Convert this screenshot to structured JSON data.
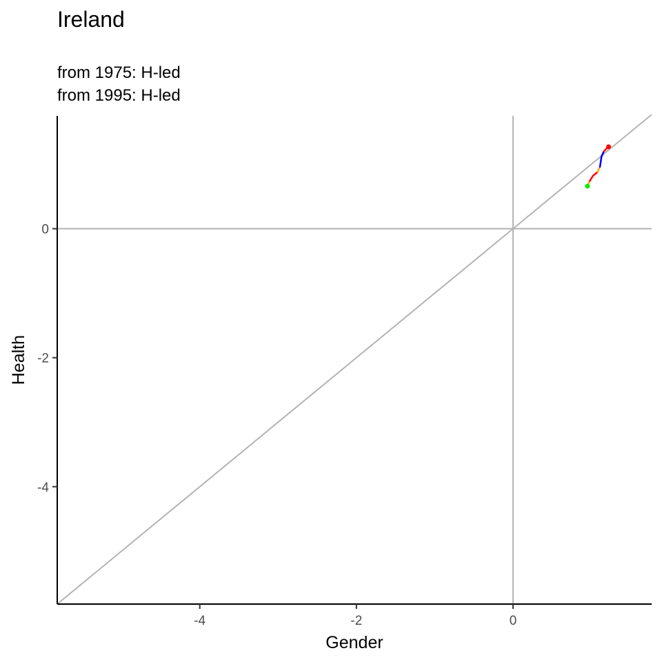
{
  "chart_data": {
    "type": "line",
    "title": "Ireland",
    "subtitle": [
      "from 1975:  H-led",
      "from 1995:  H-led"
    ],
    "xlabel": "Gender",
    "ylabel": "Health",
    "xlim": [
      -5.82,
      1.77
    ],
    "ylim": [
      -5.82,
      1.75
    ],
    "x_ticks": [
      -4,
      -2,
      0
    ],
    "y_ticks": [
      0,
      -2,
      -4
    ],
    "reference_lines": {
      "hline_y": 0,
      "vline_x": 0,
      "diagonal": "y = x",
      "color": "#b3b3b3"
    },
    "grid": false,
    "legend": "none",
    "trajectory": [
      {
        "x": 0.95,
        "y": 0.66,
        "color": "#ffa500"
      },
      {
        "x": 0.98,
        "y": 0.74,
        "color": "#ffa500"
      },
      {
        "x": 1.02,
        "y": 0.82,
        "color": "#ff0000"
      },
      {
        "x": 1.08,
        "y": 0.88,
        "color": "#ff0000"
      },
      {
        "x": 1.11,
        "y": 0.96,
        "color": "#ffa500"
      },
      {
        "x": 1.12,
        "y": 1.04,
        "color": "#0000ff"
      },
      {
        "x": 1.13,
        "y": 1.12,
        "color": "#0000ff"
      },
      {
        "x": 1.16,
        "y": 1.2,
        "color": "#0000ff"
      },
      {
        "x": 1.2,
        "y": 1.25,
        "color": "#ff0000"
      },
      {
        "x": 1.22,
        "y": 1.27,
        "color": "#ff0000"
      }
    ],
    "start_point": {
      "x": 0.95,
      "y": 0.66,
      "color": "#00ee00"
    },
    "end_point": {
      "x": 1.22,
      "y": 1.27,
      "color": "#ff0000"
    }
  }
}
